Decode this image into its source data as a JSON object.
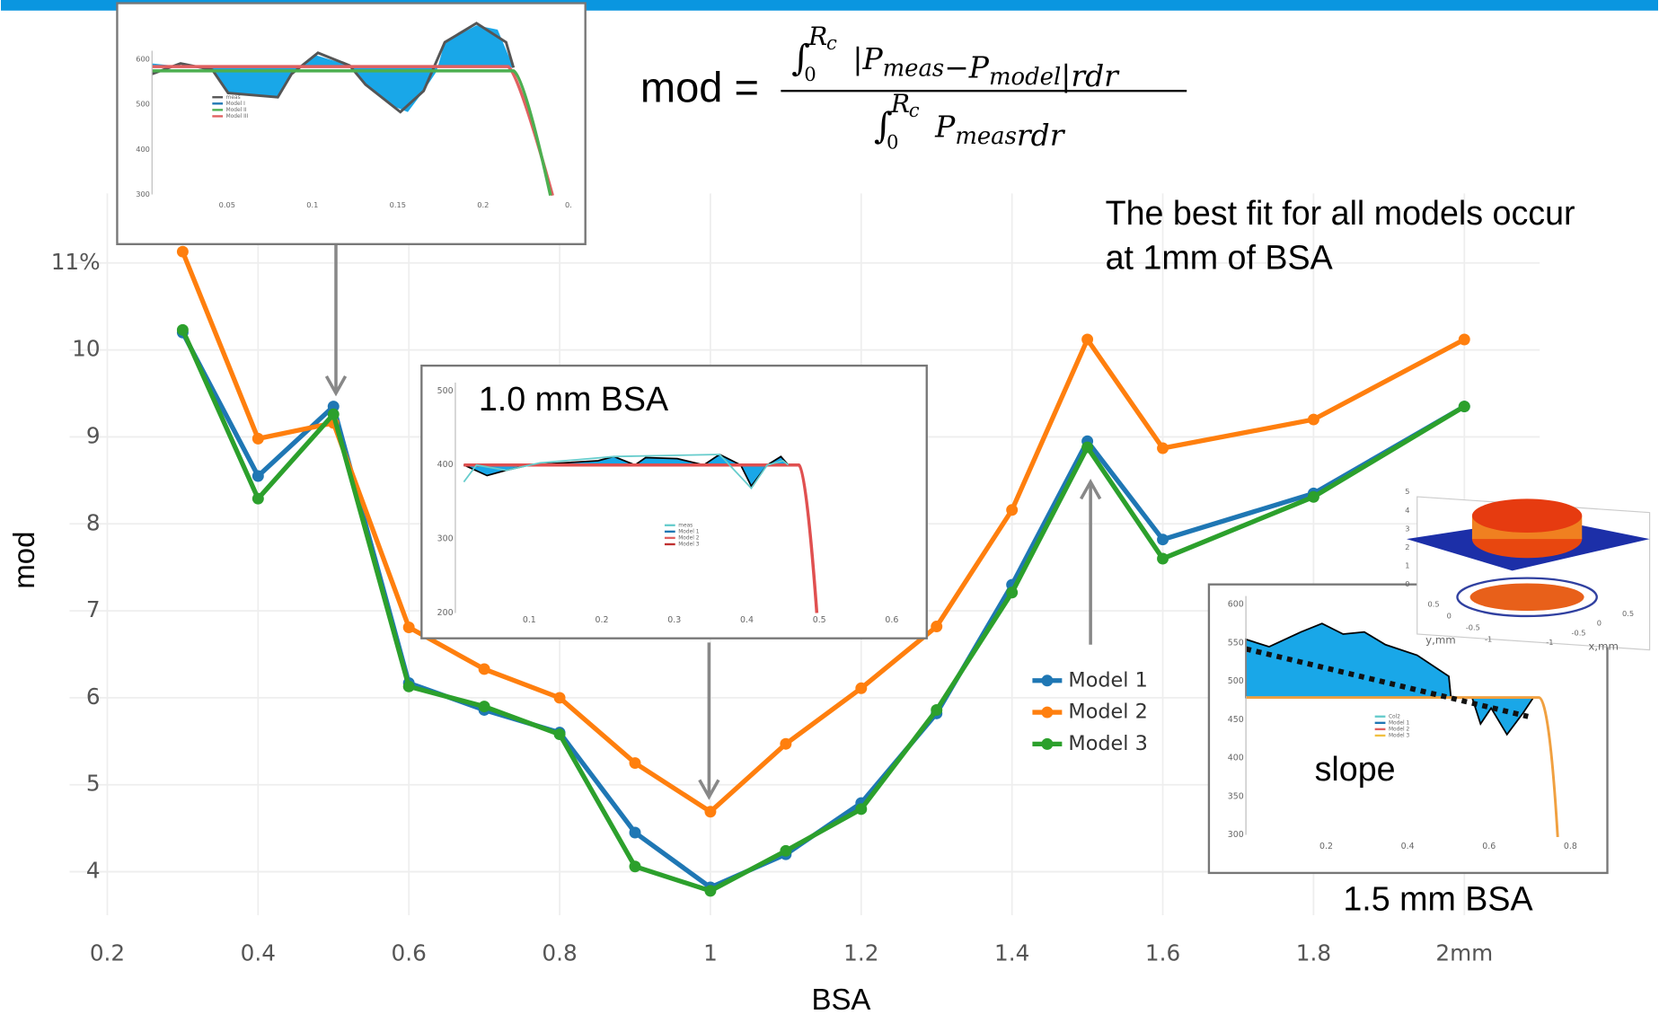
{
  "chart_data": {
    "type": "line",
    "x_label": "BSA",
    "y_label": "mod",
    "x": [
      0.3,
      0.4,
      0.5,
      0.6,
      0.7,
      0.8,
      0.9,
      1.0,
      1.1,
      1.2,
      1.3,
      1.4,
      1.5,
      1.6,
      1.8,
      2.0
    ],
    "series": [
      {
        "name": "Model 1",
        "color": "#1f77b4",
        "values": [
          10.2,
          8.55,
          9.35,
          6.17,
          5.86,
          5.6,
          4.45,
          3.82,
          4.2,
          4.79,
          5.82,
          7.3,
          8.95,
          7.82,
          8.35,
          9.35
        ]
      },
      {
        "name": "Model 2",
        "color": "#ff7f0e",
        "values": [
          11.13,
          8.98,
          9.16,
          6.81,
          6.33,
          6.0,
          5.25,
          4.69,
          5.47,
          6.11,
          6.82,
          8.16,
          10.12,
          8.87,
          9.2,
          10.12
        ]
      },
      {
        "name": "Model 3",
        "color": "#2ca02c",
        "values": [
          10.23,
          8.29,
          9.26,
          6.13,
          5.9,
          5.58,
          4.06,
          3.78,
          4.24,
          4.72,
          5.86,
          7.21,
          8.88,
          7.6,
          8.31,
          9.35
        ]
      }
    ],
    "xlim": [
      0.15,
      2.1
    ],
    "ylim": [
      3.5,
      11.8
    ],
    "xticks": [
      0.2,
      0.4,
      0.6,
      0.8,
      1,
      1.2,
      1.4,
      1.6,
      1.8,
      {
        "value": 2,
        "label": "2mm"
      }
    ],
    "yticks": [
      4,
      5,
      6,
      7,
      8,
      9,
      10,
      {
        "value": 11,
        "label": "11%"
      }
    ],
    "grid": true,
    "annotation": [
      "The best fit for all models occur",
      "at 1mm of BSA"
    ],
    "formula": {
      "lhs": "mod =",
      "integral": "∫",
      "num": {
        "lower": "0",
        "upper": "R",
        "upper_sub": "c",
        "terms": [
          {
            "base": "|P",
            "sub": "meas"
          },
          {
            "base": "−P",
            "sub": "model"
          },
          {
            "base": "|rdr",
            "sub": ""
          }
        ]
      },
      "den": {
        "lower": "0",
        "upper": "R",
        "upper_sub": "c",
        "terms": [
          {
            "base": "P",
            "sub": "meas"
          },
          {
            "base": "rdr",
            "sub": ""
          }
        ]
      }
    },
    "insets": [
      {
        "yticks": [
          600,
          500,
          400,
          300
        ],
        "xticks": [
          0.05,
          0.1,
          0.15,
          0.2,
          {
            "value": 0.25,
            "label": "0."
          }
        ],
        "legend": [
          "meas",
          "Model I",
          "Model II",
          "Model III"
        ]
      },
      {
        "title": "1.0 mm BSA",
        "yticks": [
          500,
          400,
          300,
          200
        ],
        "xticks": [
          0.1,
          0.2,
          0.3,
          0.4,
          0.5,
          0.6
        ],
        "legend": [
          "meas",
          "Model 1",
          "Model 2",
          "Model 3"
        ]
      },
      {
        "label": "slope",
        "caption": "1.5 mm BSA",
        "yticks": [
          600,
          550,
          500,
          450,
          400,
          350,
          300
        ],
        "xticks": [
          0.2,
          0.4,
          0.6,
          0.8
        ],
        "legend": [
          "Col2",
          "Model 1",
          "Model 2",
          "Model 3"
        ]
      },
      {
        "zticks": [
          0,
          1,
          2,
          3,
          4,
          5
        ],
        "y_label": "y,mm",
        "x_label": "x,mm",
        "yticks": [
          0.5,
          0,
          -0.5,
          -1
        ],
        "xticks": [
          -1,
          -0.5,
          0,
          0.5
        ]
      }
    ]
  }
}
